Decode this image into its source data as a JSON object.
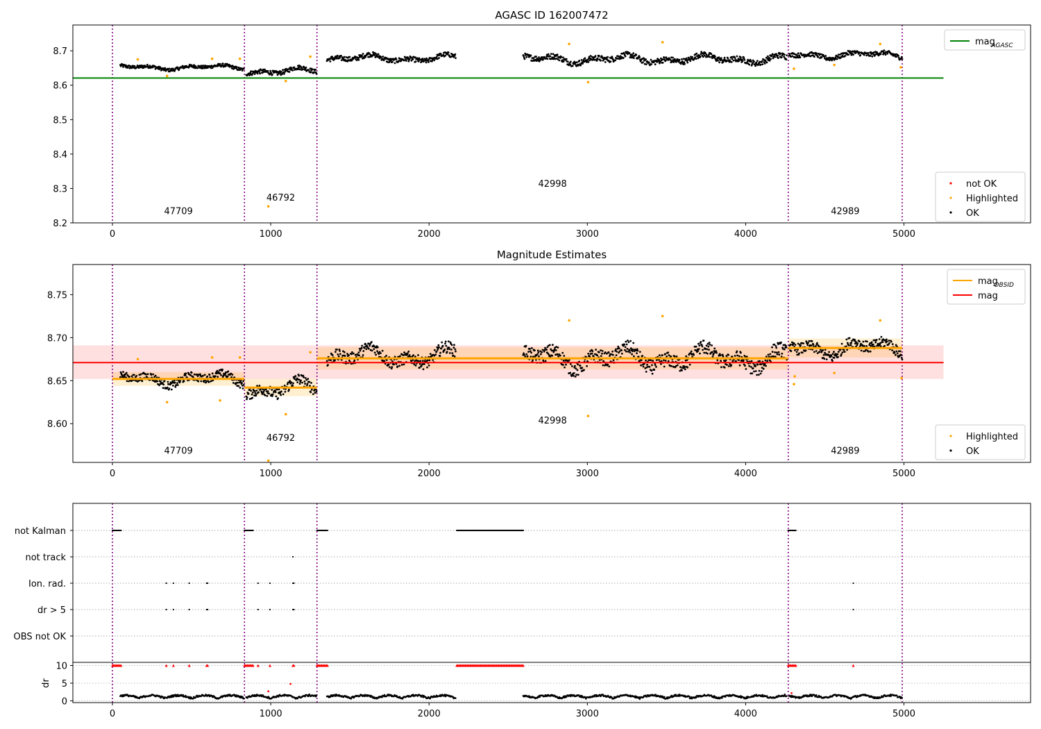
{
  "chart_data": [
    {
      "type": "scatter",
      "title": "AGASC ID 162007472",
      "xlabel": "",
      "ylabel": "",
      "xlim": [
        -250,
        5800
      ],
      "ylim": [
        8.2,
        8.775
      ],
      "xticks": [
        "0",
        "1000",
        "2000",
        "3000",
        "4000",
        "5000"
      ],
      "yticks": [
        "8.2",
        "8.3",
        "8.4",
        "8.5",
        "8.6",
        "8.7"
      ],
      "obsid_boundaries": [
        0,
        834,
        1292,
        4269,
        4989
      ],
      "obsid_labels": [
        {
          "text": "47709",
          "x": 417,
          "y": 8.225
        },
        {
          "text": "46792",
          "x": 1063,
          "y": 8.265
        },
        {
          "text": "42998",
          "x": 2780,
          "y": 8.305
        },
        {
          "text": "42989",
          "x": 4629,
          "y": 8.225
        }
      ],
      "hlines": [
        {
          "name": "mag_AGASC",
          "y": 8.621,
          "x": [
            -250,
            5250
          ],
          "color": "#008000"
        }
      ],
      "segments": [
        {
          "x": [
            50,
            830
          ],
          "base": 8.652,
          "amp": 0.008
        },
        {
          "x": [
            845,
            1290
          ],
          "base": 8.641,
          "amp": 0.011
        },
        {
          "x": [
            1355,
            2170
          ],
          "base": 8.678,
          "amp": 0.012
        },
        {
          "x": [
            2595,
            4262
          ],
          "base": 8.676,
          "amp": 0.014
        },
        {
          "x": [
            4275,
            4990
          ],
          "base": 8.688,
          "amp": 0.011
        }
      ],
      "highlighted_points": [
        [
          160,
          8.675
        ],
        [
          345,
          8.627
        ],
        [
          630,
          8.677
        ],
        [
          805,
          8.677
        ],
        [
          985,
          8.248
        ],
        [
          1095,
          8.612
        ],
        [
          1250,
          8.683
        ],
        [
          2885,
          8.72
        ],
        [
          3005,
          8.609
        ],
        [
          3475,
          8.725
        ],
        [
          4305,
          8.648
        ],
        [
          4560,
          8.659
        ],
        [
          4850,
          8.72
        ],
        [
          4980,
          8.652
        ]
      ],
      "legend_top": [
        {
          "label": "mag",
          "sub": "AGASC",
          "color": "#008000",
          "kind": "line"
        }
      ],
      "legend_bottom": [
        {
          "label": "not OK",
          "color": "#ff0000",
          "kind": "dot"
        },
        {
          "label": "Highlighted",
          "color": "#ffa500",
          "kind": "dot"
        },
        {
          "label": "OK",
          "color": "#000000",
          "kind": "dot"
        }
      ]
    },
    {
      "type": "scatter",
      "title": "Magnitude Estimates",
      "xlim": [
        -250,
        5800
      ],
      "ylim": [
        8.555,
        8.785
      ],
      "xticks": [
        "0",
        "1000",
        "2000",
        "3000",
        "4000",
        "5000"
      ],
      "yticks": [
        "8.60",
        "8.65",
        "8.70",
        "8.75"
      ],
      "obsid_labels": [
        {
          "text": "47709",
          "x": 417,
          "y": 8.565
        },
        {
          "text": "46792",
          "x": 1063,
          "y": 8.58
        },
        {
          "text": "42998",
          "x": 2780,
          "y": 8.6
        },
        {
          "text": "42989",
          "x": 4629,
          "y": 8.565
        }
      ],
      "mag": {
        "value": 8.671,
        "band": [
          8.652,
          8.691
        ],
        "x": [
          -250,
          5250
        ],
        "color": "#ff0000"
      },
      "mag_obsid": [
        {
          "x": [
            0,
            834
          ],
          "y": 8.652,
          "band": [
            8.644,
            8.66
          ]
        },
        {
          "x": [
            834,
            1292
          ],
          "y": 8.642,
          "band": [
            8.632,
            8.652
          ]
        },
        {
          "x": [
            1292,
            4269
          ],
          "y": 8.676,
          "band": [
            8.663,
            8.689
          ]
        },
        {
          "x": [
            4269,
            4989
          ],
          "y": 8.688,
          "band": [
            8.677,
            8.699
          ]
        }
      ],
      "highlighted_points": [
        [
          160,
          8.675
        ],
        [
          345,
          8.625
        ],
        [
          630,
          8.677
        ],
        [
          680,
          8.627
        ],
        [
          805,
          8.677
        ],
        [
          985,
          8.557
        ],
        [
          1095,
          8.611
        ],
        [
          1250,
          8.683
        ],
        [
          2885,
          8.72
        ],
        [
          3005,
          8.609
        ],
        [
          3475,
          8.725
        ],
        [
          4305,
          8.646
        ],
        [
          4310,
          8.655
        ],
        [
          4560,
          8.659
        ],
        [
          4850,
          8.72
        ],
        [
          4985,
          8.653
        ]
      ],
      "legend_top": [
        {
          "label": "mag",
          "sub": "OBSID",
          "color": "#ffa500",
          "kind": "line"
        },
        {
          "label": "mag",
          "sub": "",
          "color": "#ff0000",
          "kind": "line"
        }
      ],
      "legend_bottom": [
        {
          "label": "Highlighted",
          "color": "#ffa500",
          "kind": "dot"
        },
        {
          "label": "OK",
          "color": "#000000",
          "kind": "dot"
        }
      ]
    },
    {
      "type": "scatter",
      "title": "",
      "xlim": [
        -250,
        5800
      ],
      "xticks": [
        "0",
        "1000",
        "2000",
        "3000",
        "4000",
        "5000"
      ],
      "flag_rows": [
        "not Kalman",
        "not track",
        "Ion. rad.",
        "dr > 5",
        "OBS not OK"
      ],
      "flag_ranges": {
        "not Kalman": [
          [
            0,
            55
          ],
          [
            834,
            890
          ],
          [
            1292,
            1360
          ],
          [
            2175,
            2600
          ],
          [
            4269,
            4320
          ]
        ],
        "not track": [
          [
            1140,
            1140
          ]
        ],
        "Ion. rad.": [
          [
            340,
            340
          ],
          [
            385,
            385
          ],
          [
            485,
            485
          ],
          [
            595,
            605
          ],
          [
            920,
            920
          ],
          [
            995,
            995
          ],
          [
            1140,
            1150
          ],
          [
            4680,
            4680
          ]
        ],
        "dr > 5": [
          [
            340,
            340
          ],
          [
            385,
            385
          ],
          [
            485,
            485
          ],
          [
            595,
            605
          ],
          [
            920,
            920
          ],
          [
            995,
            995
          ],
          [
            1140,
            1150
          ],
          [
            4680,
            4680
          ]
        ],
        "OBS not OK": []
      },
      "dr_ylabel": "dr",
      "dr_yticks": [
        "0",
        "5",
        "10"
      ],
      "dr_ylim": [
        -0.5,
        10.3
      ],
      "dr_capped_ranges": [
        [
          0,
          55
        ],
        [
          834,
          890
        ],
        [
          920,
          920
        ],
        [
          995,
          995
        ],
        [
          1140,
          1150
        ],
        [
          1292,
          1360
        ],
        [
          2175,
          2600
        ],
        [
          4269,
          4320
        ],
        [
          4680,
          4680
        ],
        [
          340,
          340
        ],
        [
          385,
          385
        ],
        [
          485,
          485
        ],
        [
          595,
          605
        ]
      ],
      "dr_outliers": [
        [
          1125,
          4.8
        ],
        [
          985,
          2.7
        ],
        [
          4290,
          2.2
        ]
      ],
      "colors": {
        "flag": "#000000",
        "capped": "#ff0000",
        "dr": "#000000"
      }
    }
  ]
}
